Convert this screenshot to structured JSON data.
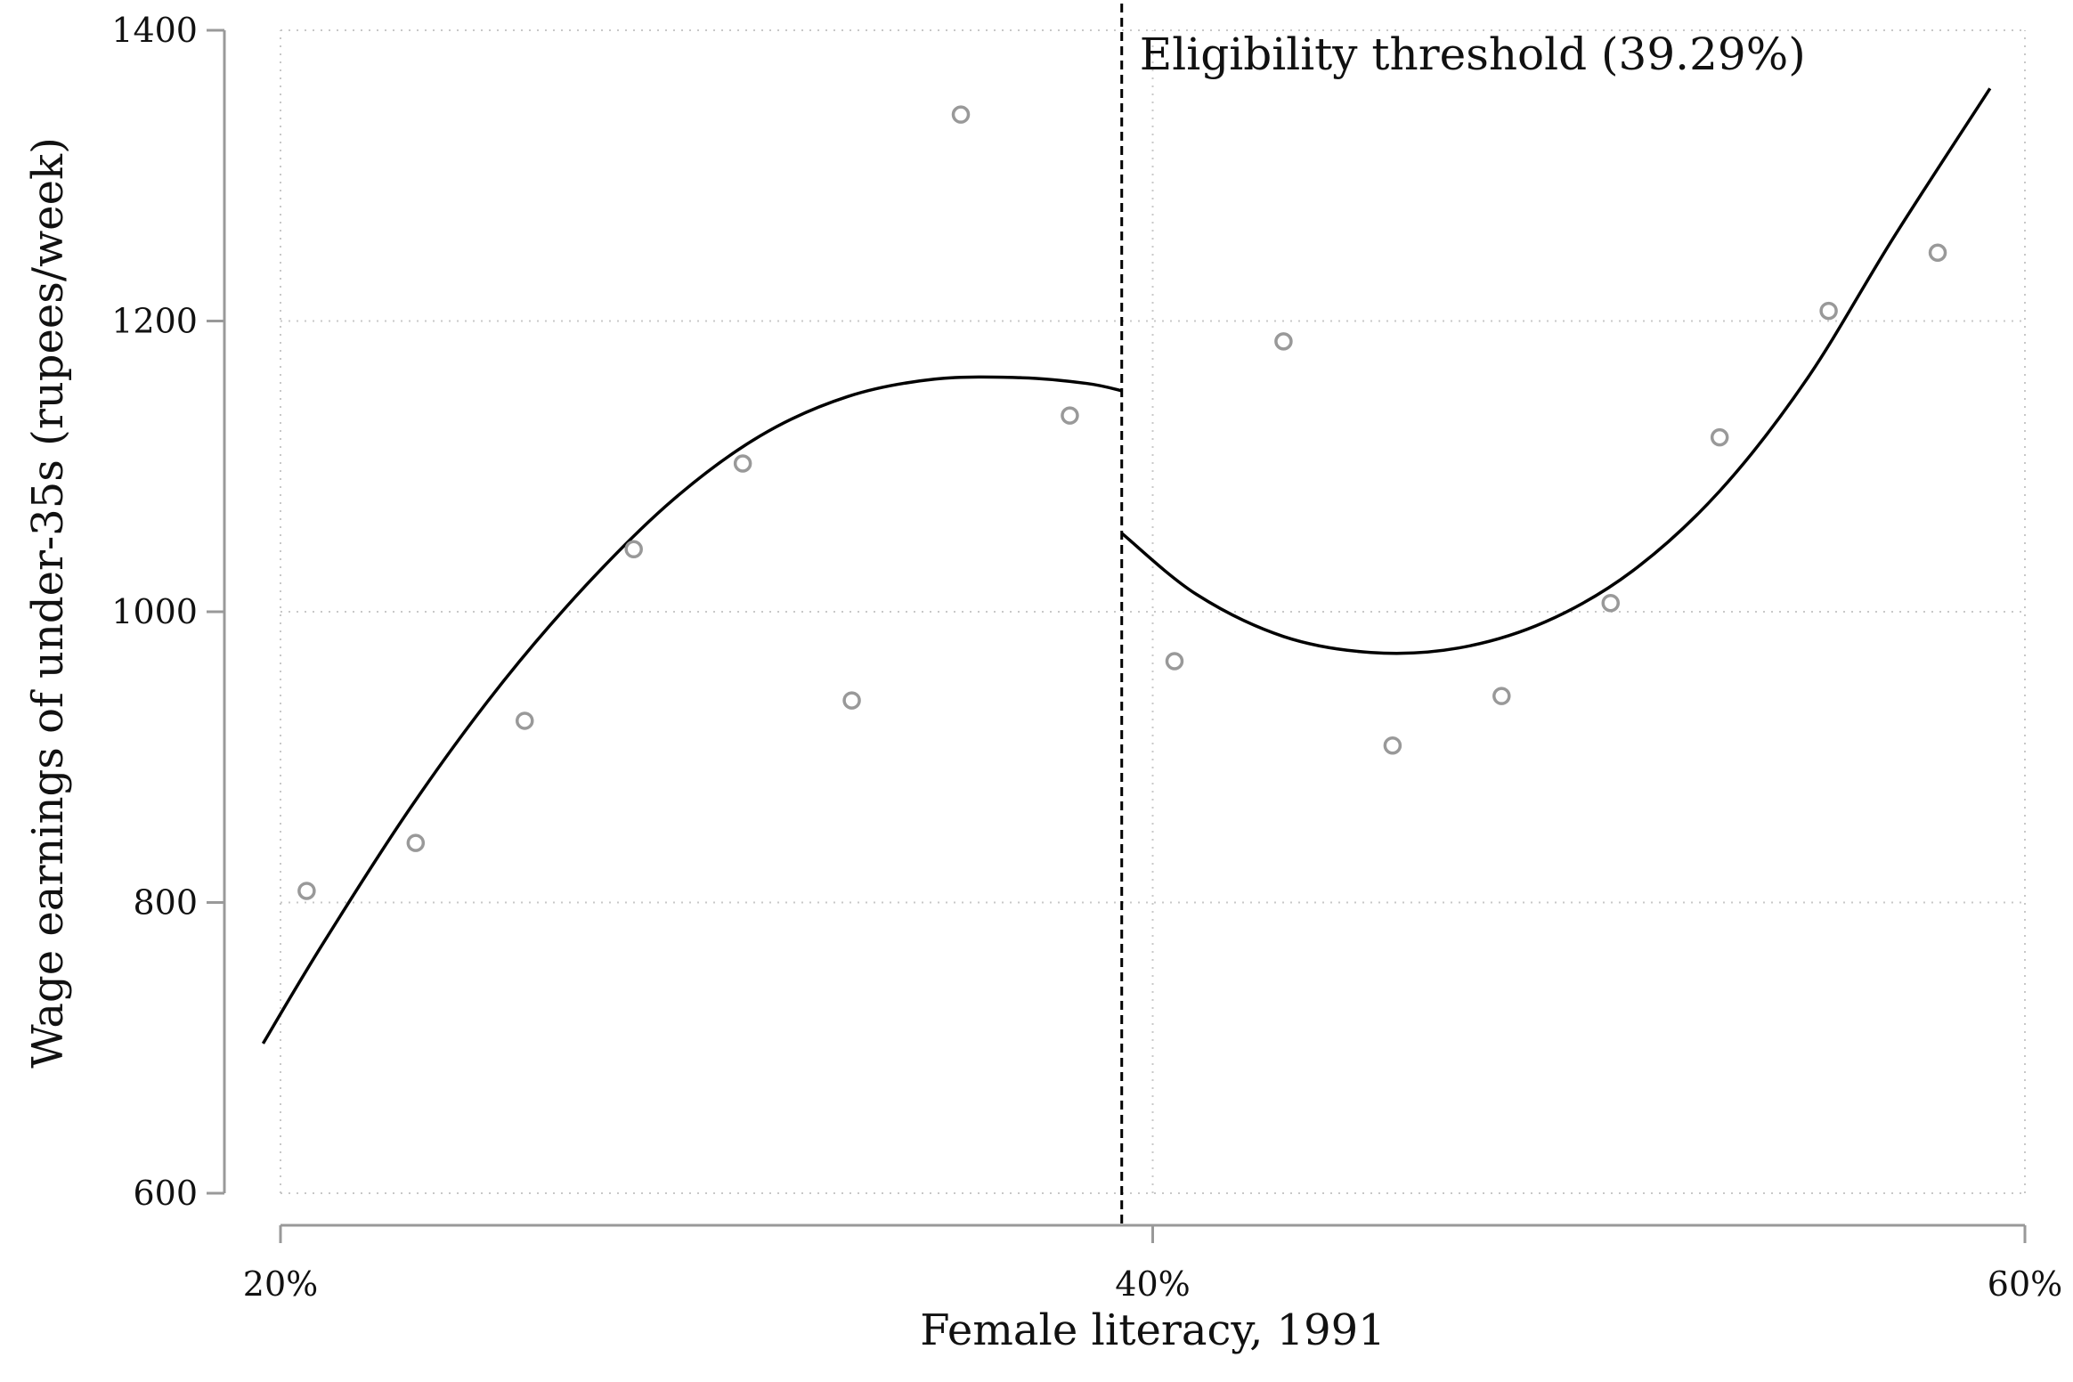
{
  "chart_data": {
    "type": "scatter",
    "xlabel": "Female literacy, 1991",
    "ylabel": "Wage earnings of under-35s (rupees/week)",
    "xlim": [
      20,
      60
    ],
    "ylim": [
      600,
      1400
    ],
    "x_ticks": [
      {
        "value": 20,
        "label": "20%"
      },
      {
        "value": 40,
        "label": "40%"
      },
      {
        "value": 60,
        "label": "60%"
      }
    ],
    "y_ticks": [
      {
        "value": 600,
        "label": "600"
      },
      {
        "value": 800,
        "label": "800"
      },
      {
        "value": 1000,
        "label": "1000"
      },
      {
        "value": 1200,
        "label": "1200"
      },
      {
        "value": 1400,
        "label": "1400"
      }
    ],
    "grid": true,
    "threshold": {
      "x": 39.29,
      "label": "Eligibility threshold (39.29%)"
    },
    "points": [
      {
        "x": 20.6,
        "y": 808
      },
      {
        "x": 23.1,
        "y": 841
      },
      {
        "x": 25.6,
        "y": 925
      },
      {
        "x": 28.1,
        "y": 1043
      },
      {
        "x": 30.6,
        "y": 1102
      },
      {
        "x": 33.1,
        "y": 939
      },
      {
        "x": 35.6,
        "y": 1342
      },
      {
        "x": 38.1,
        "y": 1135
      },
      {
        "x": 40.5,
        "y": 966
      },
      {
        "x": 43.0,
        "y": 1186
      },
      {
        "x": 45.5,
        "y": 908
      },
      {
        "x": 48.0,
        "y": 942
      },
      {
        "x": 50.5,
        "y": 1006
      },
      {
        "x": 53.0,
        "y": 1120
      },
      {
        "x": 55.5,
        "y": 1207
      },
      {
        "x": 58.0,
        "y": 1247
      }
    ],
    "fit_left": [
      {
        "x": 19.6,
        "y": 703
      },
      {
        "x": 21.0,
        "y": 773
      },
      {
        "x": 23.0,
        "y": 866
      },
      {
        "x": 25.0,
        "y": 948
      },
      {
        "x": 27.0,
        "y": 1018
      },
      {
        "x": 29.0,
        "y": 1077
      },
      {
        "x": 31.0,
        "y": 1121
      },
      {
        "x": 33.0,
        "y": 1148
      },
      {
        "x": 35.0,
        "y": 1160
      },
      {
        "x": 37.0,
        "y": 1161
      },
      {
        "x": 38.5,
        "y": 1157
      },
      {
        "x": 39.29,
        "y": 1152
      }
    ],
    "fit_right": [
      {
        "x": 39.29,
        "y": 1054
      },
      {
        "x": 41.0,
        "y": 1012
      },
      {
        "x": 43.0,
        "y": 983
      },
      {
        "x": 45.0,
        "y": 972
      },
      {
        "x": 47.0,
        "y": 975
      },
      {
        "x": 49.0,
        "y": 993
      },
      {
        "x": 51.0,
        "y": 1028
      },
      {
        "x": 53.0,
        "y": 1083
      },
      {
        "x": 55.0,
        "y": 1160
      },
      {
        "x": 57.0,
        "y": 1258
      },
      {
        "x": 59.2,
        "y": 1360
      }
    ],
    "colors": {
      "line": "#000000",
      "marker": "#999999",
      "axis": "#999999",
      "grid": "#c8c8c8"
    }
  }
}
